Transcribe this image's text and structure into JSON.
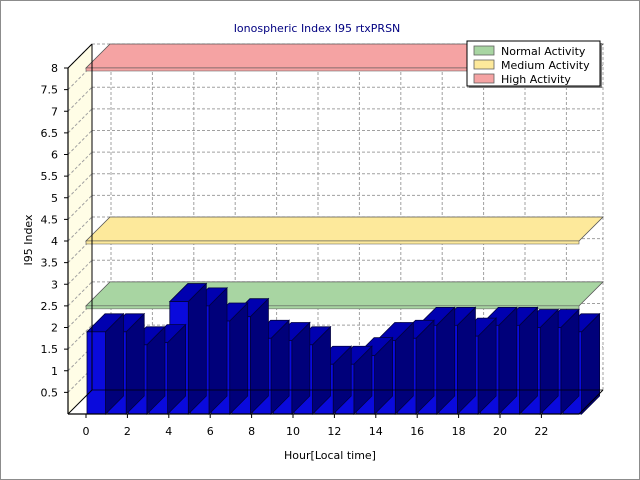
{
  "chart_data": {
    "type": "bar",
    "title": "Ionospheric Index I95 rtxPRSN",
    "xlabel": "Hour[Local time]",
    "ylabel": "I95 Index",
    "ylim": [
      0,
      8
    ],
    "yticks": [
      0.5,
      1,
      1.5,
      2,
      2.5,
      3,
      3.5,
      4,
      4.5,
      5,
      5.5,
      6,
      6.5,
      7,
      7.5,
      8
    ],
    "ytick_labels": [
      "0.5",
      "1",
      "1.5",
      "2",
      "2.5",
      "3",
      "3.5",
      "4",
      "4.5",
      "5",
      "5.5",
      "6",
      "6.5",
      "7",
      "7.5",
      "8"
    ],
    "xticks": [
      0,
      2,
      4,
      6,
      8,
      10,
      12,
      14,
      16,
      18,
      20,
      22
    ],
    "xtick_labels": [
      "0",
      "2",
      "4",
      "6",
      "8",
      "10",
      "12",
      "14",
      "16",
      "18",
      "20",
      "22"
    ],
    "x": [
      0,
      1,
      2,
      3,
      4,
      5,
      6,
      7,
      8,
      9,
      10,
      11,
      12,
      13,
      14,
      15,
      16,
      17,
      18,
      19,
      20,
      21,
      22,
      23
    ],
    "values": [
      1.9,
      1.9,
      1.6,
      1.65,
      2.6,
      2.5,
      2.15,
      2.25,
      1.75,
      1.7,
      1.6,
      1.15,
      1.15,
      1.35,
      1.7,
      1.75,
      2.05,
      2.05,
      1.8,
      2.05,
      2.05,
      2.0,
      2.0,
      1.9
    ],
    "bar_color": "#0a0adc",
    "bands": [
      {
        "name": "Normal Activity",
        "level": 2.5,
        "color": "#a8d5a2"
      },
      {
        "name": "Medium Activity",
        "level": 4.0,
        "color": "#fde99b"
      },
      {
        "name": "High Activity",
        "level": 8.0,
        "color": "#f5a3a3"
      }
    ],
    "grid": true,
    "legend": "top-right"
  }
}
